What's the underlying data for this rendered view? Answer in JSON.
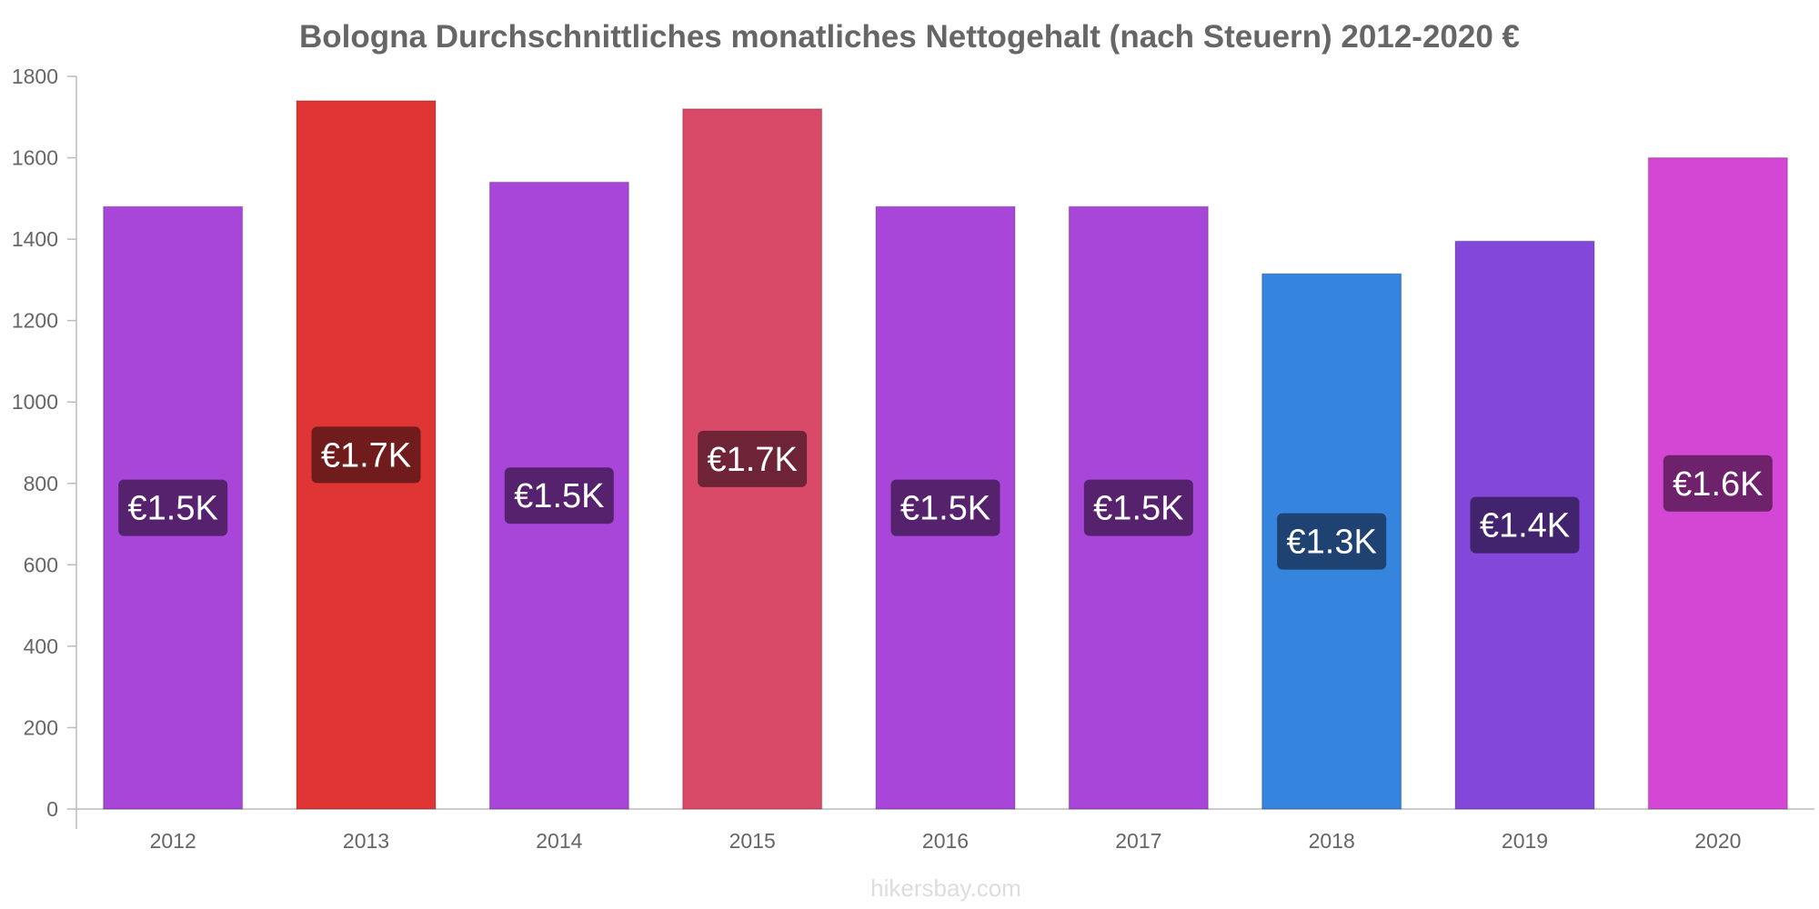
{
  "chart_data": {
    "type": "bar",
    "title": "Bologna Durchschnittliches monatliches Nettogehalt (nach Steuern) 2012-2020 €",
    "categories": [
      "2012",
      "2013",
      "2014",
      "2015",
      "2016",
      "2017",
      "2018",
      "2019",
      "2020"
    ],
    "values": [
      1480,
      1740,
      1540,
      1720,
      1480,
      1480,
      1315,
      1395,
      1600
    ],
    "data_labels": [
      "€1.5K",
      "€1.7K",
      "€1.5K",
      "€1.7K",
      "€1.5K",
      "€1.5K",
      "€1.3K",
      "€1.4K",
      "€1.6K"
    ],
    "colors": [
      "#a846d9",
      "#e03535",
      "#a846d9",
      "#d94a68",
      "#a846d9",
      "#a846d9",
      "#3584de",
      "#8348d9",
      "#d446d4"
    ],
    "label_bg_colors": [
      "#56226e",
      "#701c1c",
      "#56226e",
      "#6e2436",
      "#56226e",
      "#56226e",
      "#1e4272",
      "#42246e",
      "#6e226c"
    ],
    "ylim": [
      0,
      1800
    ],
    "yticks": [
      0,
      200,
      400,
      600,
      800,
      1000,
      1200,
      1400,
      1600,
      1800
    ],
    "xlabel": "",
    "ylabel": "",
    "grid": false,
    "legend": "none"
  },
  "footer": "hikersbay.com"
}
